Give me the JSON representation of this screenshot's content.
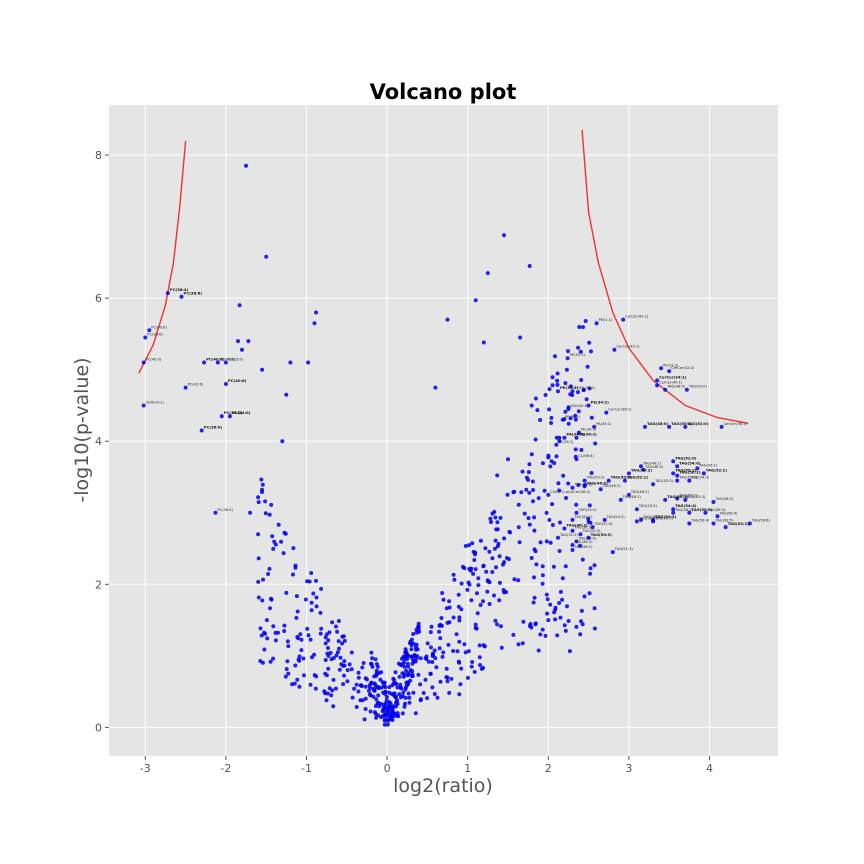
{
  "chart_data": {
    "type": "scatter",
    "title": "Volcano plot",
    "xlabel": "log2(ratio)",
    "ylabel": "-log10(p-value)",
    "xlim": [
      -3.45,
      4.85
    ],
    "ylim": [
      -0.4,
      8.7
    ],
    "xticks": [
      "-3",
      "-2",
      "-1",
      "0",
      "1",
      "2",
      "3",
      "4"
    ],
    "yticks": [
      "0",
      "2",
      "4",
      "6",
      "8"
    ],
    "grid": true,
    "point_color": "#0000ee",
    "threshold_curve_color": "#ee3333",
    "threshold_curves": [
      {
        "x": [
          -3.08,
          -2.9,
          -2.75,
          -2.65,
          -2.57,
          -2.5
        ],
        "y": [
          4.95,
          5.35,
          5.9,
          6.5,
          7.3,
          8.2
        ]
      },
      {
        "x": [
          2.42,
          2.5,
          2.62,
          2.8,
          3.0,
          3.3,
          3.7,
          4.1,
          4.48
        ],
        "y": [
          8.35,
          7.2,
          6.5,
          5.8,
          5.3,
          4.85,
          4.5,
          4.33,
          4.25
        ]
      }
    ],
    "labeled_points": [
      {
        "label": "PC(36:4)",
        "x": -2.72,
        "y": 6.07,
        "bold": true
      },
      {
        "label": "PC(38:6)",
        "x": -2.55,
        "y": 6.02,
        "bold": true
      },
      {
        "label": "PC(40:6)",
        "x": -2.95,
        "y": 5.55
      },
      {
        "label": "PC(38:6)",
        "x": -3.0,
        "y": 5.45
      },
      {
        "label": "PC(40:0)",
        "x": -3.02,
        "y": 5.1
      },
      {
        "label": "PC(40:6)",
        "x": -2.27,
        "y": 5.1,
        "bold": true
      },
      {
        "label": "PC(42:6)",
        "x": -2.1,
        "y": 5.1
      },
      {
        "label": "PE(23:0)",
        "x": -2.0,
        "y": 5.1
      },
      {
        "label": "PC(42:6)",
        "x": -2.5,
        "y": 4.75
      },
      {
        "label": "PC(40:6)",
        "x": -2.0,
        "y": 4.8,
        "bold": true
      },
      {
        "label": "CER(24:1)",
        "x": -3.02,
        "y": 4.5
      },
      {
        "label": "PC(34:0)",
        "x": -2.05,
        "y": 4.35,
        "bold": true
      },
      {
        "label": "PC(34:0)",
        "x": -1.95,
        "y": 4.35,
        "bold": true
      },
      {
        "label": "PC(36:0)",
        "x": -2.3,
        "y": 4.15,
        "bold": true
      },
      {
        "label": "PC(36:5)",
        "x": -2.13,
        "y": 3.0
      },
      {
        "label": "CerCer(42:1)",
        "x": 2.93,
        "y": 5.7
      },
      {
        "label": "PE(O-1)",
        "x": 2.6,
        "y": 5.65
      },
      {
        "label": "CerCer(40:1)",
        "x": 2.82,
        "y": 5.28
      },
      {
        "label": "PE(32:1)",
        "x": 2.24,
        "y": 5.16
      },
      {
        "label": "PE(32:2)",
        "x": 3.4,
        "y": 5.02
      },
      {
        "label": "CerCer(42:2)",
        "x": 3.5,
        "y": 4.98
      },
      {
        "label": "CerCer(34:1)",
        "x": 3.35,
        "y": 4.85,
        "bold": true
      },
      {
        "label": "CerCer(40:1)",
        "x": 3.35,
        "y": 4.78
      },
      {
        "label": "TAG(48:0)",
        "x": 3.45,
        "y": 4.72
      },
      {
        "label": "TAG(50:0)",
        "x": 3.72,
        "y": 4.72
      },
      {
        "label": "PE(34:2)",
        "x": 2.12,
        "y": 4.7,
        "bold": true
      },
      {
        "label": "PE/PA(34:1)",
        "x": 2.3,
        "y": 4.7
      },
      {
        "label": "PE(34:2)",
        "x": 2.5,
        "y": 4.5,
        "bold": true
      },
      {
        "label": "TAG(44:0)",
        "x": 2.25,
        "y": 4.45
      },
      {
        "label": "CerCer(38:1)",
        "x": 2.72,
        "y": 4.4
      },
      {
        "label": "PE(34:2)",
        "x": 2.18,
        "y": 4.3
      },
      {
        "label": "PA(34:1)",
        "x": 2.57,
        "y": 4.2
      },
      {
        "label": "TAG(48:0)",
        "x": 3.2,
        "y": 4.2,
        "bold": true
      },
      {
        "label": "TAG(50:1)",
        "x": 3.5,
        "y": 4.2,
        "bold": true
      },
      {
        "label": "TAG(52:0)",
        "x": 3.7,
        "y": 4.2,
        "bold": true
      },
      {
        "label": "CerCer(36:1)",
        "x": 4.15,
        "y": 4.2
      },
      {
        "label": "PE(34:3)",
        "x": 2.38,
        "y": 4.12
      },
      {
        "label": "PA(34:2)",
        "x": 2.2,
        "y": 4.05,
        "bold": true
      },
      {
        "label": "PA(36:2)",
        "x": 2.35,
        "y": 4.05,
        "bold": true
      },
      {
        "label": "PE(36:3)",
        "x": 2.1,
        "y": 3.95
      },
      {
        "label": "CL(68:4)",
        "x": 2.35,
        "y": 3.75
      },
      {
        "label": "TAG(52:0)",
        "x": 3.55,
        "y": 3.72,
        "bold": true
      },
      {
        "label": "TAG(54:0)",
        "x": 3.6,
        "y": 3.65,
        "bold": true
      },
      {
        "label": "TAG(46:1)",
        "x": 3.15,
        "y": 3.65
      },
      {
        "label": "TAG(56:1)",
        "x": 3.85,
        "y": 3.62
      },
      {
        "label": "TAG(48:2)",
        "x": 3.18,
        "y": 3.6
      },
      {
        "label": "TAG(50:2)",
        "x": 3.55,
        "y": 3.55,
        "bold": true
      },
      {
        "label": "TAG(52:2)",
        "x": 3.93,
        "y": 3.55,
        "bold": true
      },
      {
        "label": "TAG(54:2)",
        "x": 3.0,
        "y": 3.55,
        "bold": true
      },
      {
        "label": "TAG(56:2)",
        "x": 3.6,
        "y": 3.52,
        "bold": true
      },
      {
        "label": "TAG(53:1)",
        "x": 2.45,
        "y": 3.45
      },
      {
        "label": "TAG(50:1)",
        "x": 2.75,
        "y": 3.45,
        "bold": true
      },
      {
        "label": "TAG(52:1)",
        "x": 2.95,
        "y": 3.45,
        "bold": true
      },
      {
        "label": "TAG(52:3)",
        "x": 3.3,
        "y": 3.4
      },
      {
        "label": "TAG(55:0)",
        "x": 3.6,
        "y": 3.45
      },
      {
        "label": "TAG(54:3)",
        "x": 3.75,
        "y": 3.45
      },
      {
        "label": "TAG(48:2)",
        "x": 2.3,
        "y": 3.35
      },
      {
        "label": "TAG(46:0)",
        "x": 2.45,
        "y": 3.37,
        "bold": true
      },
      {
        "label": "TAG(46:1)",
        "x": 2.65,
        "y": 3.33
      },
      {
        "label": "TAG(48:1)",
        "x": 2.9,
        "y": 3.18
      },
      {
        "label": "TAG(46:2)",
        "x": 3.0,
        "y": 3.25
      },
      {
        "label": "TAG(54:2)",
        "x": 3.6,
        "y": 3.2
      },
      {
        "label": "TAG(50:3)",
        "x": 3.45,
        "y": 3.18,
        "bold": true
      },
      {
        "label": "TAG(52:3)",
        "x": 3.7,
        "y": 3.18
      },
      {
        "label": "TAG(58:2)",
        "x": 4.05,
        "y": 3.15
      },
      {
        "label": "Chl(4:1)-acylCer(36:2)",
        "x": 2.0,
        "y": 3.25
      },
      {
        "label": "TAG(53:3)",
        "x": 3.1,
        "y": 3.05
      },
      {
        "label": "TAG(54:4)",
        "x": 3.55,
        "y": 3.05,
        "bold": true
      },
      {
        "label": "TAG(56:3)",
        "x": 3.75,
        "y": 3.0,
        "bold": true
      },
      {
        "label": "TAG(58:3)",
        "x": 3.95,
        "y": 3.0
      },
      {
        "label": "TAG(56:2)",
        "x": 3.55,
        "y": 3.0
      },
      {
        "label": "TAG(58:4)",
        "x": 4.1,
        "y": 2.95
      },
      {
        "label": "CER(34:2)",
        "x": 2.35,
        "y": 3.0
      },
      {
        "label": "TAG(50:1)",
        "x": 2.3,
        "y": 2.9
      },
      {
        "label": "TAG(50:2)",
        "x": 2.7,
        "y": 2.9
      },
      {
        "label": "TAG(52:4)",
        "x": 3.1,
        "y": 2.88
      },
      {
        "label": "TAG(54:5)",
        "x": 3.3,
        "y": 2.88
      },
      {
        "label": "TAG(56:4)",
        "x": 3.75,
        "y": 2.85
      },
      {
        "label": "TAG(58:5)",
        "x": 4.05,
        "y": 2.85
      },
      {
        "label": "TAG(58:6)",
        "x": 4.5,
        "y": 2.85
      },
      {
        "label": "TAG(48:2)",
        "x": 3.15,
        "y": 2.9
      },
      {
        "label": "TAG(50:3)",
        "x": 3.3,
        "y": 2.9,
        "bold": true
      },
      {
        "label": "TAG(46:3)",
        "x": 2.2,
        "y": 2.78,
        "bold": true
      },
      {
        "label": "TAG(51:4)",
        "x": 2.55,
        "y": 2.8
      },
      {
        "label": "TAG(56:1)",
        "x": 2.3,
        "y": 2.75
      },
      {
        "label": "TAG(52:3)",
        "x": 2.4,
        "y": 2.7
      },
      {
        "label": "TAG(51:2)",
        "x": 2.12,
        "y": 2.65
      },
      {
        "label": "TAG(50:3)",
        "x": 2.5,
        "y": 2.65,
        "bold": true
      },
      {
        "label": "TAG(52:2)",
        "x": 4.2,
        "y": 2.8,
        "bold": true
      },
      {
        "label": "TAG(48:0)",
        "x": 2.35,
        "y": 2.6
      },
      {
        "label": "TAG(46:2)",
        "x": 2.3,
        "y": 2.55
      },
      {
        "label": "TAG(56:2)",
        "x": 2.3,
        "y": 2.48
      },
      {
        "label": "TAG(51:3)",
        "x": 2.8,
        "y": 2.45
      }
    ]
  }
}
